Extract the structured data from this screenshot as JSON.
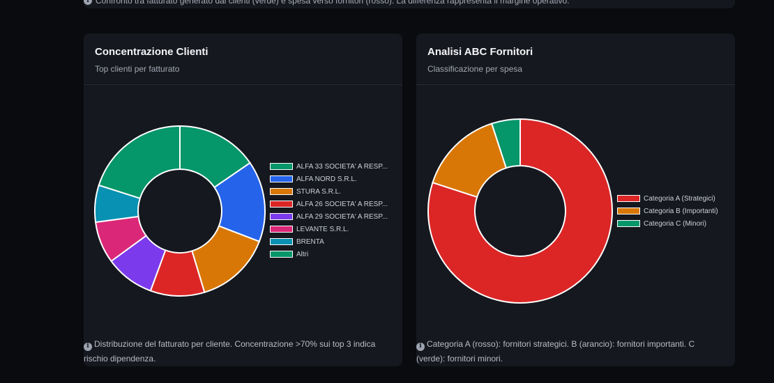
{
  "top_note": "Confronto tra fatturato generato dai clienti (verde) e spesa verso fornitori (rosso). La differenza rappresenta il margine operativo.",
  "cards": [
    {
      "title": "Concentrazione Clienti",
      "subtitle": "Top clienti per fatturato",
      "footer": "Distribuzione del fatturato per cliente. Concentrazione >70% sui top 3 indica rischio dipendenza."
    },
    {
      "title": "Analisi ABC Fornitori",
      "subtitle": "Classificazione per spesa",
      "footer": "Categoria A (rosso): fornitori strategici. B (arancio): fornitori importanti. C (verde): fornitori minori."
    }
  ],
  "chart_data": [
    {
      "type": "pie",
      "variant": "doughnut",
      "title": "Concentrazione Clienti",
      "subtitle": "Top clienti per fatturato",
      "legend_position": "right",
      "categories": [
        "ALFA 33 SOCIETA' A RESP...",
        "ALFA NORD S.R.L.",
        "STURA S.R.L.",
        "ALFA 26 SOCIETA' A RESP...",
        "ALFA 29 SOCIETA' A RESP...",
        "LEVANTE S.R.L.",
        "BRENTA",
        "Altri"
      ],
      "values": [
        16.5,
        16.5,
        15.5,
        11.0,
        10.0,
        8.5,
        7.5,
        21.5
      ],
      "colors": [
        "#059669",
        "#2563eb",
        "#d97706",
        "#dc2626",
        "#7c3aed",
        "#db2777",
        "#0891b2",
        "#059669"
      ]
    },
    {
      "type": "pie",
      "variant": "doughnut",
      "title": "Analisi ABC Fornitori",
      "subtitle": "Classificazione per spesa",
      "legend_position": "right",
      "categories": [
        "Categoria A (Strategici)",
        "Categoria B (Importanti)",
        "Categoria C (Minori)"
      ],
      "values": [
        80,
        15,
        5
      ],
      "colors": [
        "#dc2626",
        "#d97706",
        "#059669"
      ]
    }
  ]
}
